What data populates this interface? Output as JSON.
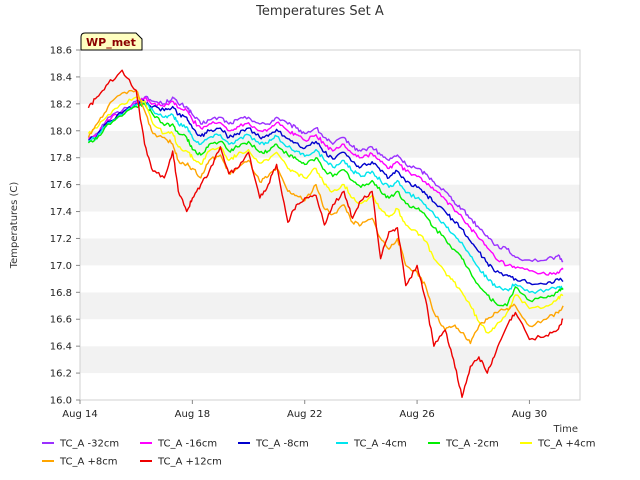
{
  "chart_data": {
    "type": "line",
    "title": "Temperatures Set A",
    "xlabel": "Time",
    "ylabel": "Temperatures (C)",
    "annotation": "WP_met",
    "xlim": [
      14,
      31.8
    ],
    "ylim": [
      16.0,
      18.6
    ],
    "x_ticks": [
      14,
      18,
      22,
      26,
      30
    ],
    "x_tick_labels": [
      "Aug 14",
      "Aug 18",
      "Aug 22",
      "Aug 26",
      "Aug 30"
    ],
    "y_ticks": [
      16.0,
      16.2,
      16.4,
      16.6,
      16.8,
      17.0,
      17.2,
      17.4,
      17.6,
      17.8,
      18.0,
      18.2,
      18.4,
      18.6
    ],
    "y_tick_labels": [
      "16.0",
      "16.2",
      "16.4",
      "16.6",
      "16.8",
      "17.0",
      "17.2",
      "17.4",
      "17.6",
      "17.8",
      "18.0",
      "18.2",
      "18.4",
      "18.6"
    ],
    "grid": "horizontal bands",
    "legend_position": "bottom",
    "x": [
      14.3,
      14.6,
      15.0,
      15.5,
      16.0,
      16.3,
      16.6,
      17.0,
      17.3,
      17.5,
      17.8,
      18.0,
      18.3,
      18.6,
      19.0,
      19.3,
      19.6,
      20.0,
      20.4,
      20.7,
      21.0,
      21.4,
      21.7,
      22.0,
      22.4,
      22.7,
      23.0,
      23.4,
      23.7,
      24.0,
      24.4,
      24.7,
      25.0,
      25.3,
      25.6,
      26.0,
      26.3,
      26.6,
      27.0,
      27.3,
      27.6,
      27.9,
      28.2,
      28.5,
      28.8,
      29.2,
      29.5,
      30.0,
      30.6,
      31.0,
      31.2
    ],
    "series": [
      {
        "name": "TC_A -32cm",
        "color": "#9b30ff",
        "values": [
          17.95,
          17.98,
          18.1,
          18.15,
          18.22,
          18.25,
          18.22,
          18.2,
          18.25,
          18.2,
          18.18,
          18.12,
          18.05,
          18.08,
          18.1,
          18.05,
          18.08,
          18.1,
          18.05,
          18.05,
          18.1,
          18.05,
          18.02,
          17.98,
          18.02,
          17.95,
          17.9,
          17.95,
          17.88,
          17.85,
          17.88,
          17.82,
          17.78,
          17.82,
          17.75,
          17.72,
          17.68,
          17.62,
          17.55,
          17.48,
          17.42,
          17.35,
          17.28,
          17.22,
          17.15,
          17.12,
          17.06,
          17.04,
          17.04,
          17.07,
          17.03
        ]
      },
      {
        "name": "TC_A -16cm",
        "color": "#ff00ff",
        "values": [
          17.94,
          17.97,
          18.08,
          18.14,
          18.21,
          18.24,
          18.2,
          18.18,
          18.22,
          18.17,
          18.15,
          18.08,
          18.02,
          18.05,
          18.06,
          18.0,
          18.03,
          18.06,
          18.0,
          18.01,
          18.06,
          18.0,
          17.97,
          17.93,
          17.97,
          17.9,
          17.85,
          17.9,
          17.83,
          17.8,
          17.83,
          17.77,
          17.72,
          17.77,
          17.7,
          17.66,
          17.62,
          17.56,
          17.49,
          17.42,
          17.36,
          17.28,
          17.2,
          17.13,
          17.05,
          17.0,
          16.98,
          16.96,
          16.93,
          16.95,
          16.97
        ]
      },
      {
        "name": "TC_A -8cm",
        "color": "#0000cd",
        "values": [
          17.93,
          17.96,
          18.07,
          18.13,
          18.2,
          18.22,
          18.18,
          18.15,
          18.18,
          18.12,
          18.1,
          18.02,
          17.96,
          18.0,
          18.02,
          17.95,
          17.98,
          18.02,
          17.95,
          17.96,
          18.01,
          17.94,
          17.91,
          17.87,
          17.92,
          17.84,
          17.79,
          17.84,
          17.77,
          17.73,
          17.77,
          17.7,
          17.65,
          17.7,
          17.62,
          17.58,
          17.53,
          17.47,
          17.4,
          17.33,
          17.27,
          17.18,
          17.1,
          17.02,
          16.95,
          16.93,
          16.9,
          16.87,
          16.86,
          16.9,
          16.88
        ]
      },
      {
        "name": "TC_A -4cm",
        "color": "#00e5ee",
        "values": [
          17.92,
          17.95,
          18.06,
          18.12,
          18.19,
          18.21,
          18.15,
          18.1,
          18.12,
          18.05,
          18.03,
          17.95,
          17.9,
          17.95,
          17.97,
          17.9,
          17.93,
          17.97,
          17.9,
          17.91,
          17.96,
          17.88,
          17.85,
          17.81,
          17.86,
          17.78,
          17.73,
          17.78,
          17.7,
          17.66,
          17.7,
          17.63,
          17.58,
          17.63,
          17.54,
          17.5,
          17.45,
          17.38,
          17.3,
          17.23,
          17.17,
          17.07,
          16.98,
          16.9,
          16.84,
          16.82,
          16.86,
          16.8,
          16.82,
          16.84,
          16.83
        ]
      },
      {
        "name": "TC_A -2cm",
        "color": "#00ee00",
        "values": [
          17.91,
          17.94,
          18.05,
          18.11,
          18.18,
          18.2,
          18.12,
          18.04,
          18.05,
          17.98,
          17.95,
          17.86,
          17.82,
          17.9,
          17.92,
          17.85,
          17.88,
          17.92,
          17.84,
          17.85,
          17.9,
          17.82,
          17.79,
          17.75,
          17.8,
          17.71,
          17.66,
          17.71,
          17.63,
          17.58,
          17.63,
          17.55,
          17.5,
          17.55,
          17.46,
          17.42,
          17.37,
          17.28,
          17.2,
          17.12,
          17.05,
          16.95,
          16.85,
          16.78,
          16.72,
          16.7,
          16.84,
          16.74,
          16.76,
          16.8,
          16.82
        ]
      },
      {
        "name": "TC_A +4cm",
        "color": "#ffff00",
        "values": [
          17.98,
          18.02,
          18.12,
          18.2,
          18.25,
          18.22,
          18.05,
          17.98,
          17.98,
          17.88,
          17.85,
          17.8,
          17.75,
          17.85,
          17.88,
          17.78,
          17.82,
          17.86,
          17.76,
          17.78,
          17.84,
          17.72,
          17.69,
          17.65,
          17.72,
          17.6,
          17.55,
          17.6,
          17.5,
          17.46,
          17.52,
          17.42,
          17.36,
          17.42,
          17.3,
          17.25,
          17.18,
          17.05,
          16.95,
          16.88,
          16.8,
          16.7,
          16.58,
          16.5,
          16.55,
          16.65,
          16.78,
          16.68,
          16.7,
          16.75,
          16.78
        ]
      },
      {
        "name": "TC_A +8cm",
        "color": "#ffa500",
        "values": [
          17.95,
          18.05,
          18.18,
          18.28,
          18.3,
          18.15,
          17.98,
          17.95,
          17.9,
          17.78,
          17.75,
          17.72,
          17.65,
          17.78,
          17.82,
          17.68,
          17.72,
          17.78,
          17.62,
          17.66,
          17.72,
          17.55,
          17.52,
          17.48,
          17.6,
          17.42,
          17.38,
          17.45,
          17.32,
          17.3,
          17.35,
          17.2,
          17.12,
          17.2,
          17.0,
          16.95,
          16.85,
          16.65,
          16.52,
          16.55,
          16.5,
          16.42,
          16.55,
          16.6,
          16.65,
          16.68,
          16.7,
          16.55,
          16.6,
          16.65,
          16.7
        ]
      },
      {
        "name": "TC_A +12cm",
        "color": "#ee0000",
        "values": [
          18.17,
          18.25,
          18.35,
          18.45,
          18.3,
          17.9,
          17.7,
          17.65,
          17.85,
          17.55,
          17.4,
          17.5,
          17.6,
          17.7,
          17.88,
          17.68,
          17.72,
          17.84,
          17.5,
          17.6,
          17.75,
          17.32,
          17.45,
          17.5,
          17.52,
          17.3,
          17.45,
          17.55,
          17.35,
          17.48,
          17.55,
          17.05,
          17.25,
          17.28,
          16.85,
          17.0,
          16.75,
          16.4,
          16.52,
          16.3,
          16.02,
          16.25,
          16.32,
          16.2,
          16.35,
          16.55,
          16.65,
          16.45,
          16.48,
          16.52,
          16.6
        ]
      }
    ]
  }
}
